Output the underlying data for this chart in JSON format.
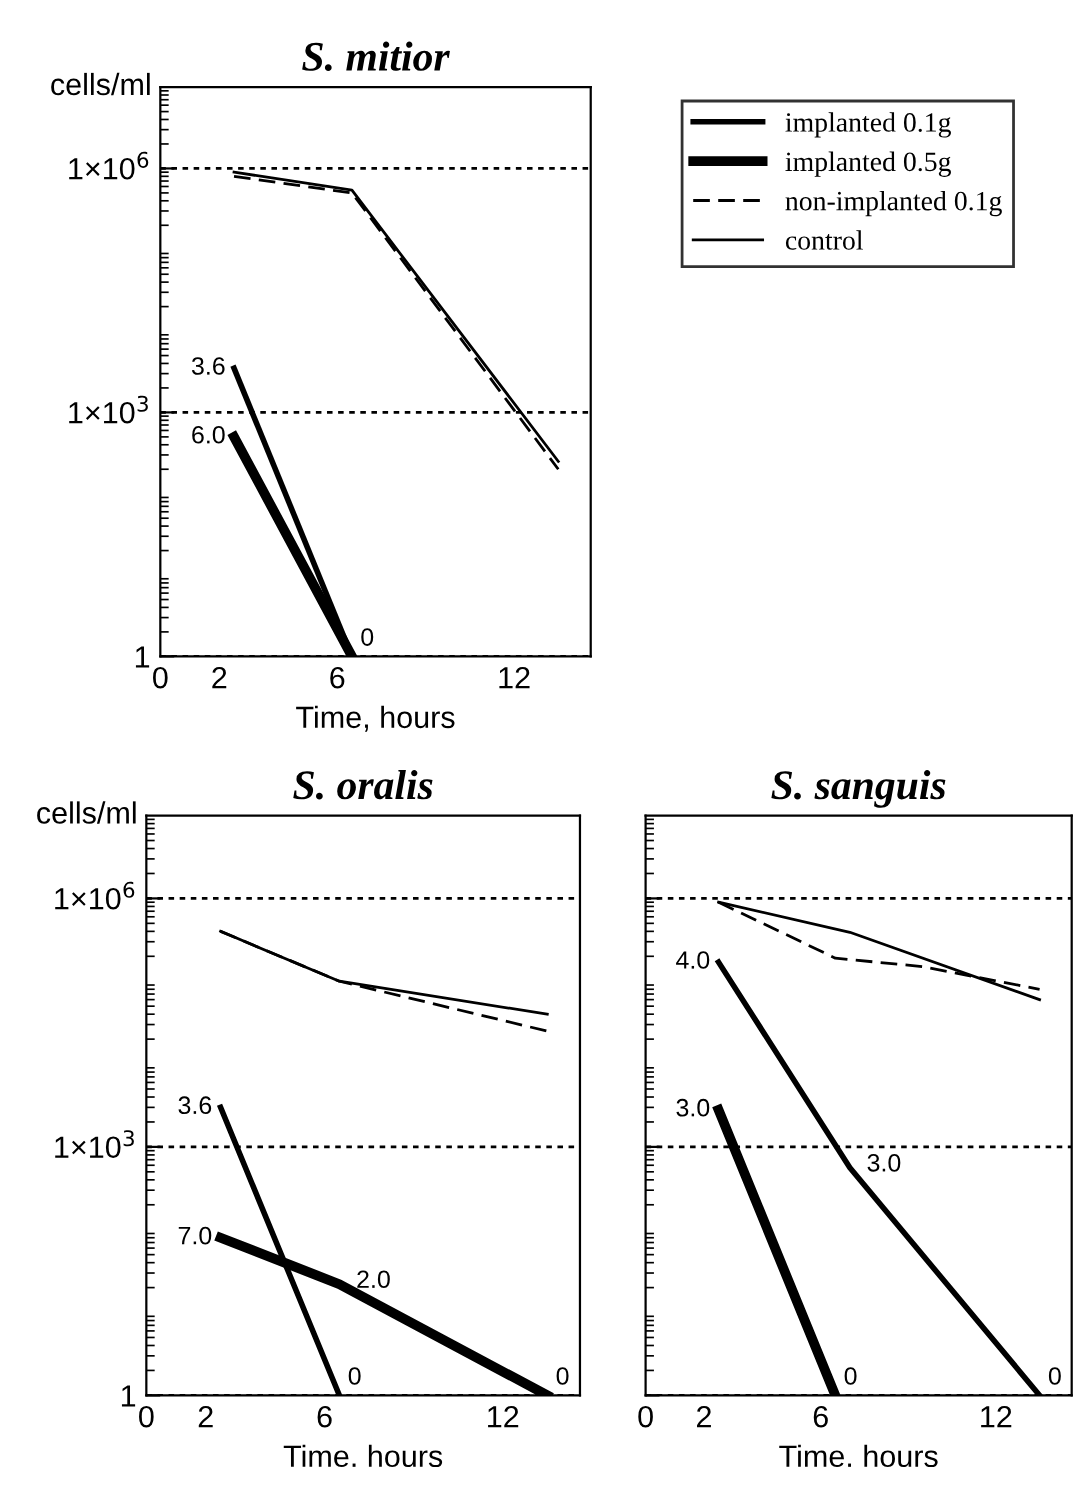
{
  "chart_data": [
    {
      "type": "line",
      "title": "S. mitior",
      "ylabel": "cells/ml",
      "xlabel": "Time, hours",
      "log": "y",
      "grid": "y",
      "legend": "right",
      "xlim": [
        0,
        14.6
      ],
      "xticks": [
        0,
        2,
        6,
        12
      ],
      "ylim": [
        1,
        10000000
      ],
      "yticks": [
        1,
        {
          "value": 1000,
          "label": "1×10$^{3}$"
        },
        {
          "value": 1000000,
          "label": "1×10$^{6}$"
        }
      ],
      "series": [
        {
          "name": "implanted 0.1g",
          "color": "#000000",
          "line_style": "solid",
          "x": [
            2.5,
            6.5
          ],
          "values": [
            3500,
            1
          ]
        },
        {
          "name": "implanted 0.5g",
          "color": "#000000",
          "line_style": "solid",
          "x": [
            2.5,
            6.5
          ],
          "values": [
            500,
            1
          ]
        },
        {
          "name": "non-implanted 0.1g",
          "color": "#000000",
          "line_style": "dashed",
          "x": [
            2.5,
            6.5,
            13.5
          ],
          "values": [
            800000,
            500000,
            200
          ]
        },
        {
          "name": "control",
          "color": "#000000",
          "line_style": "solid",
          "x": [
            2.5,
            6.5,
            13.5
          ],
          "values": [
            900000,
            540000,
            250
          ]
        }
      ],
      "annotations": [
        {
          "text": "3.6",
          "x": 2.5,
          "y": 3500
        },
        {
          "text": "6.0",
          "x": 2.5,
          "y": 500
        },
        {
          "text": "0",
          "x": 6.5,
          "y": 1
        }
      ]
    },
    {
      "type": "line",
      "title": "S. oralis",
      "ylabel": "cells/ml",
      "xlabel": "Time. hours",
      "log": "y",
      "grid": "y",
      "xlim": [
        0,
        14.6
      ],
      "xticks": [
        0,
        2,
        6,
        12
      ],
      "ylim": [
        1,
        10000000
      ],
      "yticks": [
        1,
        {
          "value": 1000,
          "label": "1×10$^{3}$"
        },
        {
          "value": 1000000,
          "label": "1×10$^{6}$"
        }
      ],
      "series": [
        {
          "color": "#000000",
          "line_style": "solid",
          "x": [
            2.5,
            6.5
          ],
          "values": [
            3000,
            1
          ]
        },
        {
          "color": "#000000",
          "line_style": "solid",
          "x": [
            2.5,
            6.5,
            13.5
          ],
          "values": [
            80,
            22,
            1
          ]
        },
        {
          "color": "#000000",
          "line_style": "dashed",
          "x": [
            2.5,
            6.5,
            13.5
          ],
          "values": [
            400000,
            100000,
            25000
          ]
        },
        {
          "color": "#000000",
          "line_style": "solid",
          "x": [
            2.5,
            6.5,
            13.5
          ],
          "values": [
            400000,
            100000,
            40000
          ]
        }
      ],
      "annotations": [
        {
          "text": "3.6",
          "x": 2.5,
          "y": 3000
        },
        {
          "text": "7.0",
          "x": 2.5,
          "y": 80
        },
        {
          "text": "2.0",
          "x": 6.5,
          "y": 22
        },
        {
          "text": "0",
          "x": 6.5,
          "y": 1
        },
        {
          "text": "0",
          "x": 13.5,
          "y": 1
        }
      ]
    },
    {
      "type": "line",
      "title": "S. sanguis",
      "xlabel": "Time. hours",
      "log": "y",
      "grid": "y",
      "tick_labels": "x",
      "xlim": [
        0,
        14.6
      ],
      "xticks": [
        0,
        2,
        6,
        12
      ],
      "ylim": [
        1,
        10000000
      ],
      "yticks": [
        {
          "value": 1,
          "label": null
        },
        {
          "value": 1000,
          "label": null
        },
        {
          "value": 1000000,
          "label": null
        }
      ],
      "series": [
        {
          "color": "#000000",
          "line_style": "solid",
          "x": [
            2.5,
            7,
            13.5
          ],
          "values": [
            170000,
            560,
            1
          ]
        },
        {
          "color": "#000000",
          "line_style": "solid",
          "x": [
            2.5,
            6.5
          ],
          "values": [
            2800,
            1
          ]
        },
        {
          "color": "#000000",
          "line_style": "dashed",
          "x": [
            2.5,
            6.5,
            9.5,
            13.5
          ],
          "values": [
            900000,
            190000,
            150000,
            80000
          ]
        },
        {
          "color": "#000000",
          "line_style": "solid",
          "x": [
            2.5,
            7,
            13.5
          ],
          "values": [
            900000,
            390000,
            60000
          ]
        }
      ],
      "annotations": [
        {
          "text": "4.0",
          "x": 2.5,
          "y": 170000
        },
        {
          "text": "3.0",
          "x": 2.5,
          "y": 2800
        },
        {
          "text": "3.0",
          "x": 7,
          "y": 560
        },
        {
          "text": "0",
          "x": 6.5,
          "y": 1
        },
        {
          "text": "0",
          "x": 13.5,
          "y": 1
        }
      ]
    }
  ]
}
